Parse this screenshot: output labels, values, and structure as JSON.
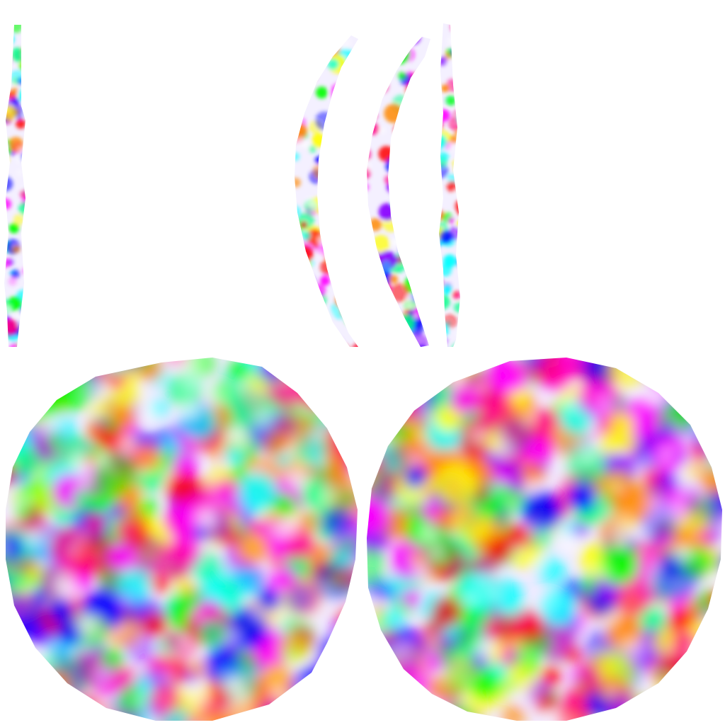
{
  "background_color": "#ffffff",
  "palette": [
    "#ff00ff",
    "#00ffff",
    "#ffff00",
    "#0000ff",
    "#00ff00",
    "#ff0000",
    "#ff8800",
    "#8800ff",
    "#00ff88",
    "#ff0088"
  ],
  "views": [
    {
      "name": "left-thin-slice",
      "shape": "vertical-sliver"
    },
    {
      "name": "outer-arc-slice",
      "shape": "curved-sliver"
    },
    {
      "name": "inner-arc-slice",
      "shape": "curved-sliver"
    },
    {
      "name": "right-thin-slice",
      "shape": "vertical-sliver"
    },
    {
      "name": "left-sphere",
      "shape": "noise-sphere"
    },
    {
      "name": "right-sphere",
      "shape": "noise-sphere"
    }
  ]
}
